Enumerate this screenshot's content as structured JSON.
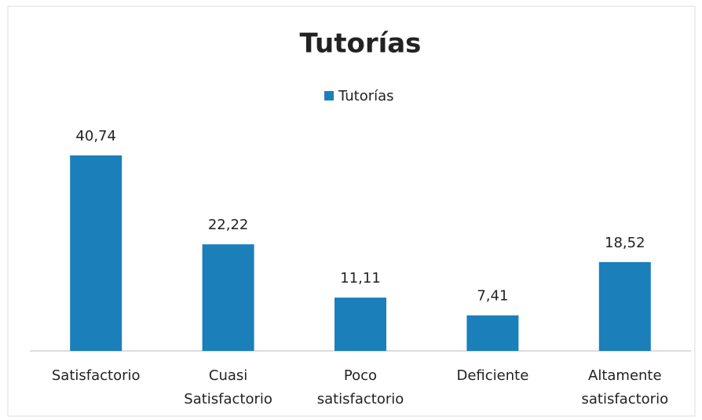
{
  "chart_data": {
    "type": "bar",
    "title": "Tutorías",
    "categories": [
      "Satisfactorio",
      "Cuasi Satisfactorio",
      "Poco satisfactorio",
      "Deficiente",
      "Altamente satisfactorio"
    ],
    "series": [
      {
        "name": "Tutorías",
        "color": "#1b7fba",
        "values": [
          40.74,
          22.22,
          11.11,
          7.41,
          18.52
        ],
        "value_labels": [
          "40,74",
          "22,22",
          "11,11",
          "7,41",
          "18,52"
        ]
      }
    ],
    "legend": "top"
  }
}
